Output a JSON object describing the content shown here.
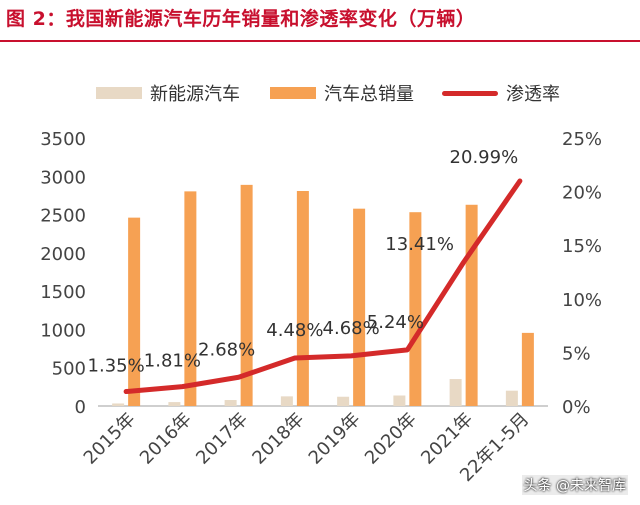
{
  "header": {
    "title": "图 2：我国新能源汽车历年销量和渗透率变化（万辆）"
  },
  "legend": {
    "items": [
      {
        "label": "新能源汽车",
        "color": "#e8d9c5",
        "kind": "bar"
      },
      {
        "label": "汽车总销量",
        "color": "#f6a153",
        "kind": "bar"
      },
      {
        "label": "渗透率",
        "color": "#d42a2a",
        "kind": "line"
      }
    ]
  },
  "watermark": "头条 @未来智库",
  "colors": {
    "nev": "#e8d9c5",
    "total": "#f6a153",
    "rate": "#d42a2a",
    "axis_text": "#444444",
    "axis_line": "#bfbfbf",
    "title": "#c8102e"
  },
  "chart_data": {
    "type": "bar",
    "categories": [
      "2015年",
      "2016年",
      "2017年",
      "2018年",
      "2019年",
      "2020年",
      "2021年",
      "22年1-5月"
    ],
    "series": [
      {
        "name": "新能源汽车",
        "type": "bar",
        "axis": "left",
        "values": [
          33,
          51,
          78,
          126,
          121,
          137,
          352,
          200
        ]
      },
      {
        "name": "汽车总销量",
        "type": "bar",
        "axis": "left",
        "values": [
          2460,
          2803,
          2888,
          2808,
          2577,
          2531,
          2628,
          955
        ]
      },
      {
        "name": "渗透率",
        "type": "line",
        "axis": "right",
        "values": [
          1.35,
          1.81,
          2.68,
          4.48,
          4.68,
          5.24,
          13.41,
          20.99
        ]
      }
    ],
    "data_labels": [
      "1.35%",
      "1.81%",
      "2.68%",
      "4.48%",
      "4.68%",
      "5.24%",
      "13.41%",
      "20.99%"
    ],
    "y_left": {
      "lim": [
        0,
        3500
      ],
      "ticks": [
        "0",
        "500",
        "1000",
        "1500",
        "2000",
        "2500",
        "3000",
        "3500"
      ]
    },
    "y_right": {
      "lim": [
        0,
        25
      ],
      "ticks": [
        "0%",
        "5%",
        "10%",
        "15%",
        "20%",
        "25%"
      ]
    },
    "grid": false,
    "legend_position": "top"
  }
}
